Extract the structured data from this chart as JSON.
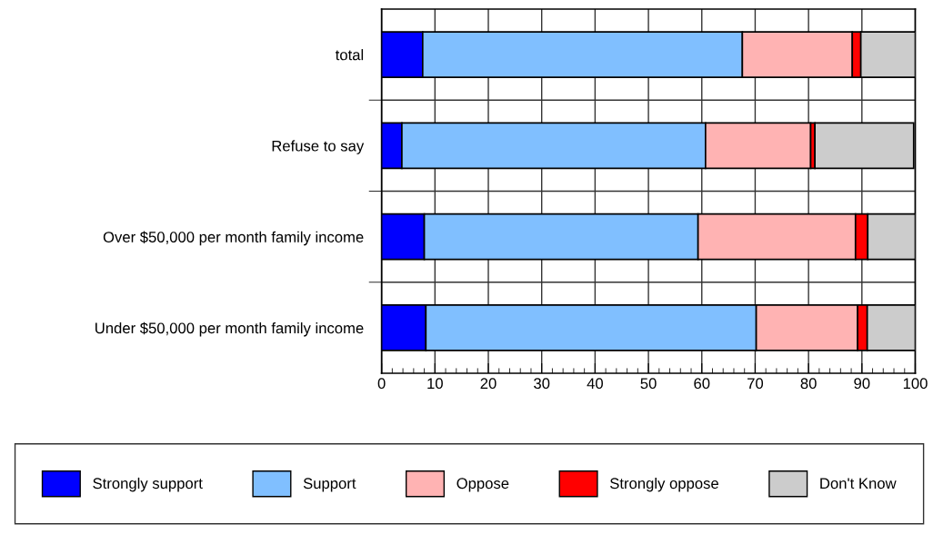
{
  "chart_data": {
    "type": "bar",
    "orientation": "horizontal",
    "stacked": true,
    "categories": [
      "total",
      "Refuse to say",
      "Over $50,000 per month family income",
      "Under $50,000 per month family income"
    ],
    "series": [
      {
        "name": "Strongly support",
        "color": "#0000ff",
        "values": [
          7.7,
          3.8,
          8.0,
          8.3
        ]
      },
      {
        "name": "Support",
        "color": "#80bfff",
        "values": [
          59.9,
          56.9,
          51.3,
          61.9
        ]
      },
      {
        "name": "Oppose",
        "color": "#ffb3b3",
        "values": [
          20.6,
          19.7,
          29.5,
          19.0
        ]
      },
      {
        "name": "Strongly oppose",
        "color": "#ff0000",
        "values": [
          1.6,
          0.8,
          2.3,
          1.8
        ]
      },
      {
        "name": "Don't Know",
        "color": "#cccccc",
        "values": [
          10.2,
          18.5,
          8.9,
          9.0
        ]
      }
    ],
    "xlim": [
      0,
      100
    ],
    "xticks": [
      0,
      10,
      20,
      30,
      40,
      50,
      60,
      70,
      80,
      90,
      100
    ],
    "grid": true,
    "legend": "bottom"
  }
}
